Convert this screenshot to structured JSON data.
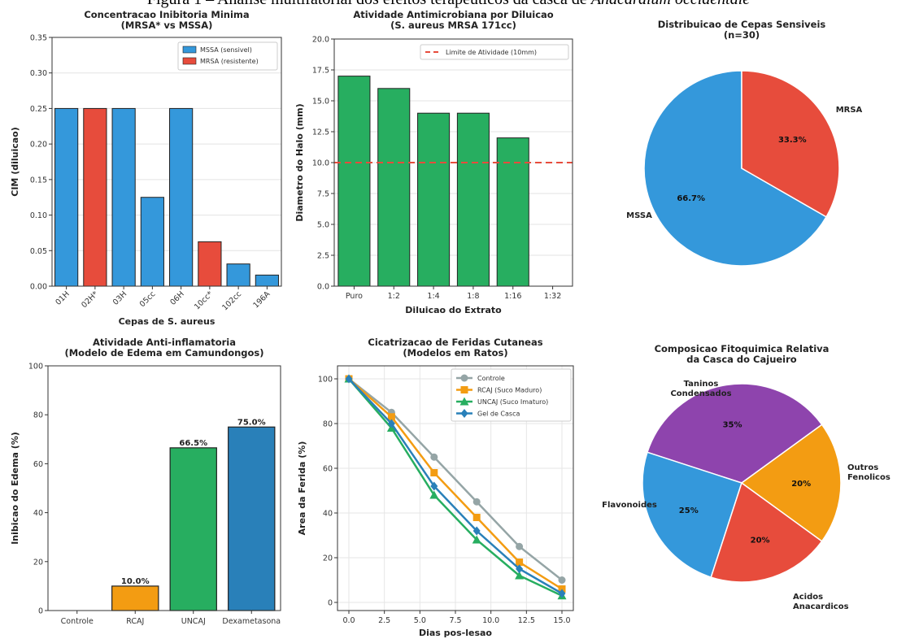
{
  "figure_title": {
    "prefix": "Figura 1 – Análise multifatorial dos efeitos terapêuticos da casca de ",
    "italic": "Anacardium occidentale"
  },
  "colors": {
    "mssa": "#3498db",
    "mrsa": "#e74c3c",
    "green": "#27ae60",
    "orange": "#f39c12",
    "purple": "#8e44ad",
    "blue_dark": "#2980b9",
    "gray": "#95a5a6"
  },
  "chart_data": [
    {
      "id": "cim",
      "type": "bar",
      "title": [
        "Concentracao Inibitoria Minima",
        "(MRSA* vs MSSA)"
      ],
      "xlabel": "Cepas de S. aureus",
      "ylabel": "CIM (diluicao)",
      "ylim": [
        0,
        0.35
      ],
      "yticks": [
        "0.00",
        "0.05",
        "0.10",
        "0.15",
        "0.20",
        "0.25",
        "0.30",
        "0.35"
      ],
      "categories": [
        "01H",
        "02H*",
        "03H",
        "05cc",
        "06H",
        "10cc*",
        "102cc",
        "196A"
      ],
      "values": [
        0.25,
        0.25,
        0.25,
        0.125,
        0.25,
        0.0625,
        0.03125,
        0.015625
      ],
      "groups": [
        "MSSA",
        "MRSA",
        "MSSA",
        "MSSA",
        "MSSA",
        "MRSA",
        "MSSA",
        "MSSA"
      ],
      "legend": [
        {
          "name": "MSSA (sensivel)",
          "group": "MSSA"
        },
        {
          "name": "MRSA (resistente)",
          "group": "MRSA"
        }
      ],
      "legend_position": "top-right",
      "grid": true
    },
    {
      "id": "halo",
      "type": "bar",
      "title": [
        "Atividade Antimicrobiana por Diluicao",
        "(S. aureus MRSA 171cc)"
      ],
      "xlabel": "Diluicao do Extrato",
      "ylabel": "Diametro do Halo (mm)",
      "ylim": [
        0,
        20
      ],
      "yticks": [
        "0.0",
        "2.5",
        "5.0",
        "7.5",
        "10.0",
        "12.5",
        "15.0",
        "17.5",
        "20.0"
      ],
      "categories": [
        "Puro",
        "1:2",
        "1:4",
        "1:8",
        "1:16",
        "1:32"
      ],
      "values": [
        17,
        16,
        14,
        14,
        12,
        0
      ],
      "threshold": {
        "value": 10,
        "name": "Limite de Atividade (10mm)"
      },
      "legend_position": "top-right",
      "grid": true
    },
    {
      "id": "pie_cepas",
      "type": "pie",
      "title": [
        "Distribuicao de Cepas Sensiveis",
        "(n=30)"
      ],
      "slices": [
        {
          "label": "MSSA",
          "value": 66.7,
          "pct": "66.7%",
          "color": "#3498db"
        },
        {
          "label": "MRSA",
          "value": 33.3,
          "pct": "33.3%",
          "color": "#e74c3c"
        }
      ]
    },
    {
      "id": "edema",
      "type": "bar",
      "title": [
        "Atividade Anti-inflamatoria",
        "(Modelo de Edema em Camundongos)"
      ],
      "ylabel": "Inibicao do Edema (%)",
      "ylim": [
        0,
        100
      ],
      "yticks": [
        "0",
        "20",
        "40",
        "60",
        "80",
        "100"
      ],
      "categories": [
        "Controle",
        "RCAJ",
        "UNCAJ",
        "Dexametasona"
      ],
      "values": [
        0,
        10.0,
        66.5,
        75.0
      ],
      "labels": [
        "",
        "10.0%",
        "66.5%",
        "75.0%"
      ],
      "colors": [
        "#95a5a6",
        "#f39c12",
        "#27ae60",
        "#2980b9"
      ]
    },
    {
      "id": "feridas",
      "type": "line",
      "title": [
        "Cicatrizacao de Feridas Cutaneas",
        "(Modelos em Ratos)"
      ],
      "xlabel": "Dias pos-lesao",
      "ylabel": "Area da Ferida (%)",
      "xlim": [
        0,
        15
      ],
      "ylim": [
        0,
        100
      ],
      "xticks": [
        "0.0",
        "2.5",
        "5.0",
        "7.5",
        "10.0",
        "12.5",
        "15.0"
      ],
      "yticks": [
        "0",
        "20",
        "40",
        "60",
        "80",
        "100"
      ],
      "x": [
        0,
        3,
        6,
        9,
        12,
        15
      ],
      "series": [
        {
          "name": "Controle",
          "values": [
            100,
            85,
            65,
            45,
            25,
            10
          ],
          "color": "#95a5a6",
          "marker": "circle"
        },
        {
          "name": "RCAJ (Suco Maduro)",
          "values": [
            100,
            83,
            58,
            38,
            18,
            6
          ],
          "color": "#f39c12",
          "marker": "square"
        },
        {
          "name": "UNCAJ (Suco Imaturo)",
          "values": [
            100,
            78,
            48,
            28,
            12,
            3
          ],
          "color": "#27ae60",
          "marker": "triangle"
        },
        {
          "name": "Gel de Casca",
          "values": [
            100,
            80,
            52,
            32,
            15,
            4
          ],
          "color": "#2980b9",
          "marker": "diamond"
        }
      ],
      "legend_position": "top-right",
      "grid": true
    },
    {
      "id": "pie_fito",
      "type": "pie",
      "title": [
        "Composicao Fitoquimica Relativa",
        "da Casca do Cajueiro"
      ],
      "slices": [
        {
          "label": "Taninos Condensados",
          "value": 35,
          "pct": "35%",
          "color": "#8e44ad"
        },
        {
          "label": "Flavonoides",
          "value": 25,
          "pct": "25%",
          "color": "#3498db"
        },
        {
          "label": "Acidos Anacardicos",
          "value": 20,
          "pct": "20%",
          "color": "#e74c3c"
        },
        {
          "label": "Outros Fenolicos",
          "value": 20,
          "pct": "20%",
          "color": "#f39c12"
        }
      ]
    }
  ]
}
